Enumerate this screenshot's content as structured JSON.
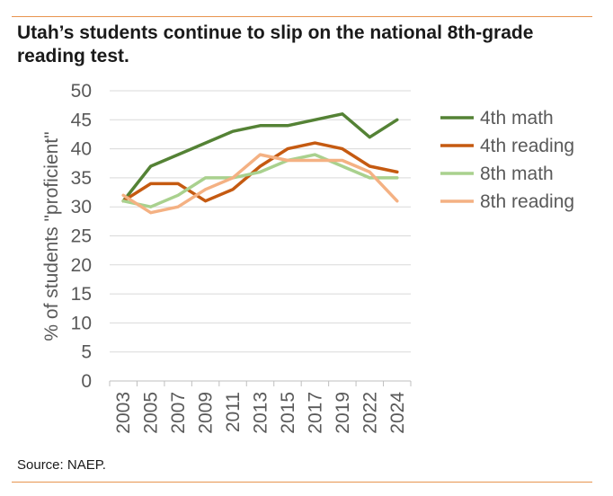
{
  "title": "Utah’s students continue to slip on the national 8th-grade reading test.",
  "source": "Source: NAEP.",
  "chart_data": {
    "type": "line",
    "title": "Utah’s students continue to slip on the national 8th-grade reading test.",
    "ylabel": "% of students \"proficient\"",
    "xlabel": "",
    "categories": [
      "2003",
      "2005",
      "2007",
      "2009",
      "2011",
      "2013",
      "2015",
      "2017",
      "2019",
      "2022",
      "2024"
    ],
    "yticks": [
      0,
      5,
      10,
      15,
      20,
      25,
      30,
      35,
      40,
      45,
      50
    ],
    "ylim": [
      0,
      50
    ],
    "grid": true,
    "legend_position": "right",
    "series": [
      {
        "name": "4th math",
        "color": "#548235",
        "values": [
          31,
          37,
          39,
          41,
          43,
          44,
          44,
          45,
          46,
          42,
          45
        ]
      },
      {
        "name": "4th reading",
        "color": "#c55a11",
        "values": [
          31,
          34,
          34,
          31,
          33,
          37,
          40,
          41,
          40,
          37,
          36
        ]
      },
      {
        "name": "8th math",
        "color": "#a9d18e",
        "values": [
          31,
          30,
          32,
          35,
          35,
          36,
          38,
          39,
          37,
          35,
          35
        ]
      },
      {
        "name": "8th reading",
        "color": "#f4b183",
        "values": [
          32,
          29,
          30,
          33,
          35,
          39,
          38,
          38,
          38,
          36,
          31
        ]
      }
    ]
  }
}
